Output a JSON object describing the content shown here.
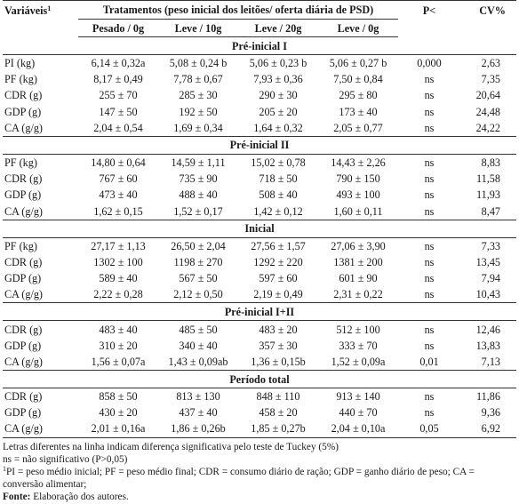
{
  "header": {
    "variaveis": "Variáveis",
    "variaveis_sup": "1",
    "tratamentos": "Tratamentos (peso inicial dos leitões/ oferta diária de PSD)",
    "p": "P<",
    "cv": "CV%",
    "treatments": [
      "Pesado / 0g",
      "Leve / 10g",
      "Leve / 20g",
      "Leve / 0g"
    ]
  },
  "sections": [
    {
      "title": "Pré-inicial I",
      "rows": [
        {
          "var": "PI (kg)",
          "vals": [
            "6,14 ± 0,32a",
            "5,08 ± 0,24 b",
            "5,06 ± 0,23 b",
            "5,06 ± 0,27 b"
          ],
          "p": "0,000",
          "cv": "2,63"
        },
        {
          "var": "PF (kg)",
          "vals": [
            "8,17 ± 0,49",
            "7,78 ± 0,67",
            "7,93 ± 0,36",
            "7,50 ± 0,84"
          ],
          "p": "ns",
          "cv": "7,35"
        },
        {
          "var": "CDR (g)",
          "vals": [
            "255 ± 70",
            "285 ± 30",
            "290 ± 30",
            "295 ± 80"
          ],
          "p": "ns",
          "cv": "20,64"
        },
        {
          "var": "GDP (g)",
          "vals": [
            "147 ± 50",
            "192 ± 50",
            "205 ± 20",
            "173 ± 40"
          ],
          "p": "ns",
          "cv": "24,48"
        },
        {
          "var": "CA (g/g)",
          "vals": [
            "2,04 ± 0,54",
            "1,69 ± 0,34",
            "1,64 ± 0,32",
            "2,05 ± 0,77"
          ],
          "p": "ns",
          "cv": "24,22"
        }
      ]
    },
    {
      "title": "Pré-inicial II",
      "rows": [
        {
          "var": "PF (kg)",
          "vals": [
            "14,80 ± 0,64",
            "14,59 ± 1,11",
            "15,02 ± 0,78",
            "14,43 ± 2,26"
          ],
          "p": "ns",
          "cv": "8,83"
        },
        {
          "var": "CDR (g)",
          "vals": [
            "767 ± 60",
            "735 ± 90",
            "718 ± 50",
            "790 ± 150"
          ],
          "p": "ns",
          "cv": "11,58"
        },
        {
          "var": "GDP (g)",
          "vals": [
            "473 ± 40",
            "488 ± 40",
            "508 ± 40",
            "493 ± 100"
          ],
          "p": "ns",
          "cv": "11,93"
        },
        {
          "var": "CA (g/g)",
          "vals": [
            "1,62 ± 0,15",
            "1,52 ± 0,17",
            "1,42 ± 0,12",
            "1,60 ± 0,11"
          ],
          "p": "ns",
          "cv": "8,47"
        }
      ]
    },
    {
      "title": "Inicial",
      "rows": [
        {
          "var": "PF (kg)",
          "vals": [
            "27,17 ± 1,13",
            "26,50 ± 2,04",
            "27,56 ± 1,57",
            "27,06 ± 3,90"
          ],
          "p": "ns",
          "cv": "7,33"
        },
        {
          "var": "CDR (g)",
          "vals": [
            "1302 ± 100",
            "1198 ± 270",
            "1292 ± 220",
            "1381 ± 200"
          ],
          "p": "ns",
          "cv": "13,45"
        },
        {
          "var": "GDP (g)",
          "vals": [
            "589 ± 40",
            "567 ± 50",
            "597 ± 60",
            "601 ± 90"
          ],
          "p": "ns",
          "cv": "7,94"
        },
        {
          "var": "CA (g/g)",
          "vals": [
            "2,22 ± 0,28",
            "2,12 ± 0,50",
            "2,19 ± 0,49",
            "2,31 ± 0,22"
          ],
          "p": "ns",
          "cv": "10,43"
        }
      ]
    },
    {
      "title": "Pré-inicial I+II",
      "rows": [
        {
          "var": "CDR (g)",
          "vals": [
            "483 ± 40",
            "485 ± 50",
            "483 ± 20",
            "512 ± 100"
          ],
          "p": "ns",
          "cv": "12,46"
        },
        {
          "var": "GDP (g)",
          "vals": [
            "310 ± 20",
            "340 ± 40",
            "357 ± 30",
            "333 ± 70"
          ],
          "p": "ns",
          "cv": "13,83"
        },
        {
          "var": "CA (g/g)",
          "vals": [
            "1,56 ± 0,07a",
            "1,43 ± 0,09ab",
            "1,36 ± 0,15b",
            "1,52 ± 0,09a"
          ],
          "p": "0,01",
          "cv": "7,13"
        }
      ]
    },
    {
      "title": "Período total",
      "rows": [
        {
          "var": "CDR (g)",
          "vals": [
            "858 ± 50",
            "813 ± 130",
            "848 ± 110",
            "913 ± 140"
          ],
          "p": "ns",
          "cv": "11,86"
        },
        {
          "var": "GDP (g)",
          "vals": [
            "430 ± 20",
            "437 ± 40",
            "458 ± 20",
            "440 ± 70"
          ],
          "p": "ns",
          "cv": "9,36"
        },
        {
          "var": "CA (g/g)",
          "vals": [
            "2,01 ± 0,16a",
            "1,86 ± 0,26b",
            "1,85 ± 0,27b",
            "2,04 ± 0,10a"
          ],
          "p": "0,05",
          "cv": "6,92"
        }
      ]
    }
  ],
  "notes": {
    "line1": "Letras diferentes na linha indicam diferença significativa pelo teste de Tuckey (5%)",
    "line2": "ns = não significativo (P>0,05)",
    "line3_sup": "1",
    "line3": "PI = peso médio inicial; PF = peso médio final; CDR = consumo diário de ração; GDP = ganho diário de peso; CA = conversão alimentar;",
    "fonte_label": "Fonte:",
    "fonte_text": " Elaboração dos autores."
  }
}
